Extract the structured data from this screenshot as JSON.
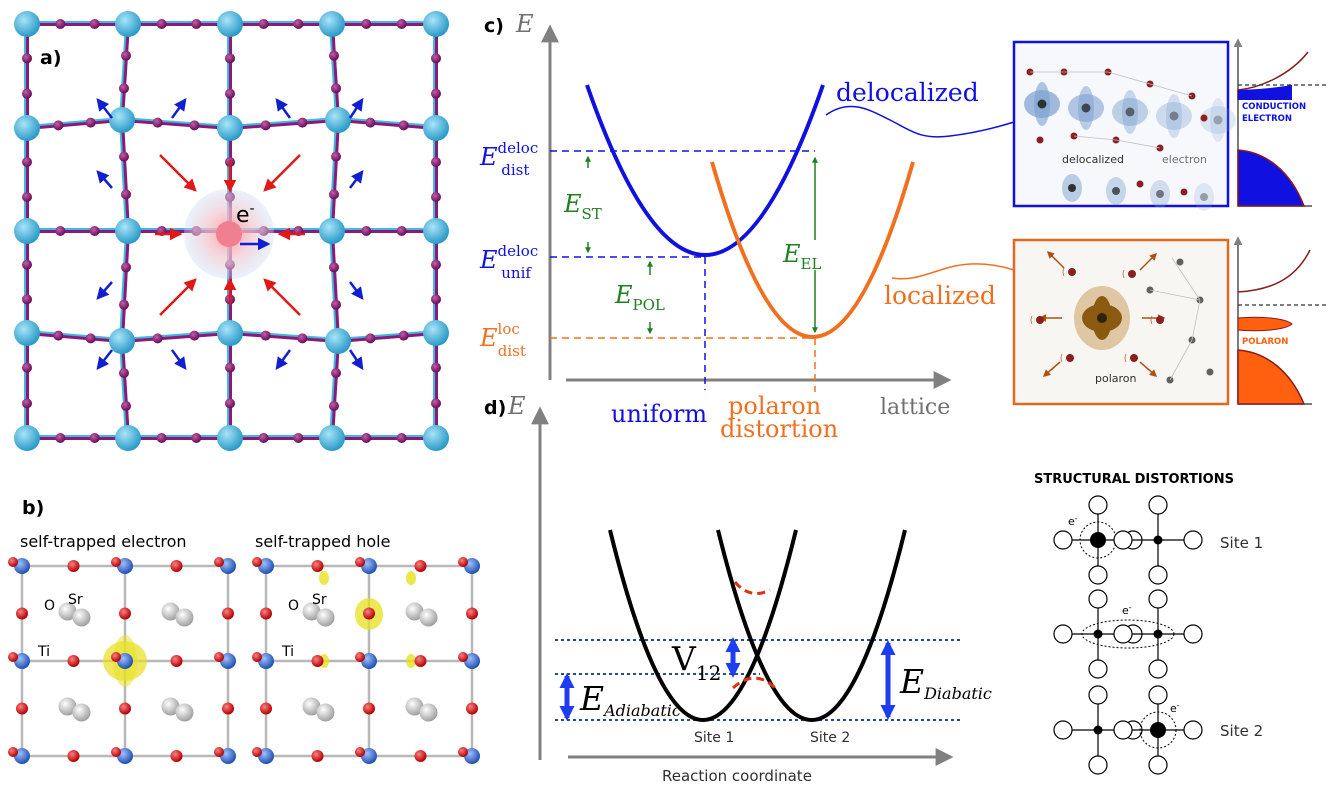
{
  "panel_a": {
    "label": "a)",
    "electron": "e",
    "electron_sup": "-"
  },
  "panel_b": {
    "label": "b)",
    "left_title": "self-trapped electron",
    "right_title": "self-trapped hole",
    "atom_O": "O",
    "atom_Sr": "Sr",
    "atom_Ti": "Ti"
  },
  "panel_c": {
    "label": "c)",
    "axis_E": "E",
    "axis_lattice": "lattice",
    "E_dist_deloc": {
      "main": "E",
      "sup": "deloc",
      "sub": "dist"
    },
    "E_unif_deloc": {
      "main": "E",
      "sup": "deloc",
      "sub": "unif"
    },
    "E_dist_loc": {
      "main": "E",
      "sup": "loc",
      "sub": "dist"
    },
    "E_ST": {
      "main": "E",
      "sub": "ST"
    },
    "E_POL": {
      "main": "E",
      "sub": "POL"
    },
    "E_EL": {
      "main": "E",
      "sub": "EL"
    },
    "delocalized": "delocalized",
    "localized": "localized",
    "uniform": "uniform",
    "polaron_distortion_1": "polaron",
    "polaron_distortion_2": "distortion",
    "inset_deloc_caption_1": "delocalized",
    "inset_deloc_caption_2": "electron",
    "inset_polaron_caption": "polaron",
    "dos_conduction_1": "CONDUCTION",
    "dos_conduction_2": "ELECTRON",
    "dos_polaron": "POLARON",
    "colors": {
      "blue": "#1010e0",
      "orange": "#f07020",
      "green": "#208020"
    }
  },
  "panel_d": {
    "label": "d)",
    "axis_E": "E",
    "axis_x": "Reaction coordinate",
    "V12": {
      "main": "V",
      "sub": "12"
    },
    "E_adiabatic": {
      "main": "E",
      "sub": "Adiabatic"
    },
    "E_diabatic": {
      "main": "E",
      "sub": "Diabatic"
    },
    "site1": "Site 1",
    "site2": "Site 2"
  },
  "structural": {
    "title": "STRUCTURAL DISTORTIONS",
    "rows": [
      {
        "label": "Site 1",
        "electron": "e",
        "sup": "-"
      },
      {
        "label": "",
        "electron": "e",
        "sup": "-"
      },
      {
        "label": "Site 2",
        "electron": "e",
        "sup": "-"
      }
    ]
  }
}
